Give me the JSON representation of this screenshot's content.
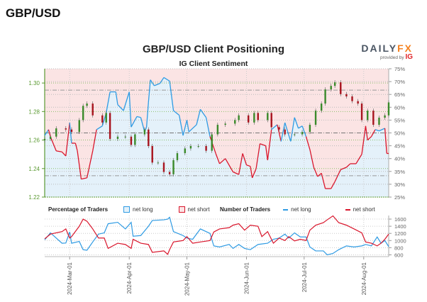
{
  "header": {
    "pair": "GBP/USD"
  },
  "logo": {
    "brand_main": "DAILY",
    "brand_accent": "FX",
    "provided_by": "provided by",
    "ig": "IG"
  },
  "colors": {
    "long": "#2f9be3",
    "short": "#d9162c",
    "up": "#3a8a2a",
    "down": "#a8141e",
    "long_fill": "#e4f1fa",
    "short_fill": "#fbe4e4",
    "price_axis": "#5b9a32"
  },
  "legend": {
    "pct_title": "Percentage of Traders",
    "pct_long": "net long",
    "pct_short": "net short",
    "num_title": "Number of Traders",
    "num_long": "net long",
    "num_short": "net short"
  },
  "chart_data": [
    {
      "type": "line",
      "title": "GBP/USD Client Positioning",
      "subtitle": "IG Client Sentiment",
      "x_range": [
        "2024-02-17",
        "2024-08-14"
      ],
      "x_ticks": [
        "2024-Mar-01",
        "2024-Apr-01",
        "2024-May-01",
        "2024-Jun-01",
        "2024-Jul-01",
        "2024-Aug-01"
      ],
      "x_tick_dates": [
        "2024-03-01",
        "2024-04-01",
        "2024-05-01",
        "2024-06-01",
        "2024-07-01",
        "2024-08-01"
      ],
      "y_left": {
        "range": [
          1.22,
          1.31
        ],
        "ticks": [
          "1.22",
          "1.24",
          "1.26",
          "1.28",
          "1.30"
        ]
      },
      "y_right": {
        "range": [
          25,
          75
        ],
        "ticks": [
          "25%",
          "30%",
          "35%",
          "40%",
          "45%",
          "50%",
          "55%",
          "60%",
          "65%",
          "70%",
          "75%"
        ]
      },
      "grid": true,
      "price_close": [
        [
          "2024-02-17",
          1.2608
        ],
        [
          "2024-02-20",
          1.2624
        ],
        [
          "2024-02-23",
          1.2682
        ],
        [
          "2024-02-28",
          1.2674
        ],
        [
          "2024-03-02",
          1.2657
        ],
        [
          "2024-03-06",
          1.274
        ],
        [
          "2024-03-08",
          1.284
        ],
        [
          "2024-03-10",
          1.2856
        ],
        [
          "2024-03-13",
          1.2773
        ],
        [
          "2024-03-18",
          1.2723
        ],
        [
          "2024-03-20",
          1.279
        ],
        [
          "2024-03-22",
          1.2608
        ],
        [
          "2024-03-26",
          1.2624
        ],
        [
          "2024-03-30",
          1.2624
        ],
        [
          "2024-04-02",
          1.2566
        ],
        [
          "2024-04-04",
          1.264
        ],
        [
          "2024-04-09",
          1.2674
        ],
        [
          "2024-04-11",
          1.2558
        ],
        [
          "2024-04-13",
          1.2442
        ],
        [
          "2024-04-16",
          1.2442
        ],
        [
          "2024-04-19",
          1.2376
        ],
        [
          "2024-04-22",
          1.236
        ],
        [
          "2024-04-24",
          1.2459
        ],
        [
          "2024-04-26",
          1.2508
        ],
        [
          "2024-04-30",
          1.2541
        ],
        [
          "2024-05-03",
          1.2558
        ],
        [
          "2024-05-07",
          1.2558
        ],
        [
          "2024-05-11",
          1.2525
        ],
        [
          "2024-05-14",
          1.264
        ],
        [
          "2024-05-17",
          1.2707
        ],
        [
          "2024-05-21",
          1.2715
        ],
        [
          "2024-05-26",
          1.274
        ],
        [
          "2024-05-28",
          1.2773
        ],
        [
          "2024-06-02",
          1.2723
        ],
        [
          "2024-06-05",
          1.279
        ],
        [
          "2024-06-07",
          1.274
        ],
        [
          "2024-06-12",
          1.279
        ],
        [
          "2024-06-14",
          1.269
        ],
        [
          "2024-06-18",
          1.2674
        ],
        [
          "2024-06-21",
          1.264
        ],
        [
          "2024-06-26",
          1.264
        ],
        [
          "2024-06-30",
          1.2657
        ],
        [
          "2024-07-04",
          1.2707
        ],
        [
          "2024-07-07",
          1.2806
        ],
        [
          "2024-07-10",
          1.2856
        ],
        [
          "2024-07-12",
          1.2955
        ],
        [
          "2024-07-15",
          1.298
        ],
        [
          "2024-07-17",
          1.3005
        ],
        [
          "2024-07-20",
          1.2922
        ],
        [
          "2024-07-23",
          1.2906
        ],
        [
          "2024-07-26",
          1.2873
        ],
        [
          "2024-07-29",
          1.2856
        ],
        [
          "2024-07-31",
          1.274
        ],
        [
          "2024-08-03",
          1.2806
        ],
        [
          "2024-08-06",
          1.2707
        ],
        [
          "2024-08-09",
          1.2757
        ],
        [
          "2024-08-12",
          1.2773
        ],
        [
          "2024-08-14",
          1.2864
        ]
      ],
      "net_long_pct": [
        [
          "2024-02-17",
          49
        ],
        [
          "2024-02-19",
          51.3
        ],
        [
          "2024-02-20",
          48.5
        ],
        [
          "2024-02-23",
          43
        ],
        [
          "2024-02-26",
          42.6
        ],
        [
          "2024-02-28",
          41
        ],
        [
          "2024-03-01",
          54
        ],
        [
          "2024-03-02",
          46
        ],
        [
          "2024-03-04",
          46
        ],
        [
          "2024-03-05",
          43
        ],
        [
          "2024-03-07",
          32
        ],
        [
          "2024-03-10",
          32.5
        ],
        [
          "2024-03-13",
          43
        ],
        [
          "2024-03-15",
          51.3
        ],
        [
          "2024-03-18",
          52.7
        ],
        [
          "2024-03-20",
          57.8
        ],
        [
          "2024-03-22",
          66
        ],
        [
          "2024-03-25",
          66
        ],
        [
          "2024-03-26",
          61
        ],
        [
          "2024-03-29",
          58.7
        ],
        [
          "2024-04-01",
          66
        ],
        [
          "2024-04-02",
          52.3
        ],
        [
          "2024-04-05",
          56.4
        ],
        [
          "2024-04-07",
          56
        ],
        [
          "2024-04-09",
          50.4
        ],
        [
          "2024-04-10",
          52.3
        ],
        [
          "2024-04-11",
          62
        ],
        [
          "2024-04-12",
          70.7
        ],
        [
          "2024-04-14",
          68.4
        ],
        [
          "2024-04-17",
          69.3
        ],
        [
          "2024-04-19",
          71.6
        ],
        [
          "2024-04-22",
          70.2
        ],
        [
          "2024-04-24",
          58.7
        ],
        [
          "2024-04-27",
          56.9
        ],
        [
          "2024-04-29",
          49
        ],
        [
          "2024-05-01",
          55
        ],
        [
          "2024-05-02",
          50.4
        ],
        [
          "2024-05-06",
          53.2
        ],
        [
          "2024-05-08",
          59.2
        ],
        [
          "2024-05-11",
          56
        ],
        [
          "2024-05-13",
          48.6
        ],
        [
          "2024-05-16",
          42
        ],
        [
          "2024-05-18",
          38
        ],
        [
          "2024-05-21",
          40
        ],
        [
          "2024-05-25",
          34.8
        ],
        [
          "2024-05-28",
          33.8
        ],
        [
          "2024-05-30",
          42
        ],
        [
          "2024-06-01",
          37.5
        ],
        [
          "2024-06-03",
          37
        ],
        [
          "2024-06-04",
          32.5
        ],
        [
          "2024-06-06",
          36
        ],
        [
          "2024-06-08",
          45.8
        ],
        [
          "2024-06-11",
          45
        ],
        [
          "2024-06-12",
          39.4
        ],
        [
          "2024-06-14",
          51.3
        ],
        [
          "2024-06-17",
          53.2
        ],
        [
          "2024-06-19",
          46.7
        ],
        [
          "2024-06-21",
          54
        ],
        [
          "2024-06-24",
          46.7
        ],
        [
          "2024-06-26",
          56
        ],
        [
          "2024-06-28",
          51.8
        ],
        [
          "2024-06-30",
          52.7
        ],
        [
          "2024-07-02",
          48.6
        ],
        [
          "2024-07-04",
          43.5
        ],
        [
          "2024-07-06",
          36.6
        ],
        [
          "2024-07-08",
          33
        ],
        [
          "2024-07-10",
          34.3
        ],
        [
          "2024-07-12",
          28.3
        ],
        [
          "2024-07-15",
          28.3
        ],
        [
          "2024-07-17",
          31
        ],
        [
          "2024-07-20",
          35.7
        ],
        [
          "2024-07-23",
          36.6
        ],
        [
          "2024-07-25",
          38
        ],
        [
          "2024-07-28",
          38
        ],
        [
          "2024-07-31",
          41.7
        ],
        [
          "2024-08-02",
          52.7
        ],
        [
          "2024-08-03",
          47.2
        ],
        [
          "2024-08-05",
          48.6
        ],
        [
          "2024-08-07",
          51.3
        ],
        [
          "2024-08-09",
          50.8
        ],
        [
          "2024-08-12",
          51.8
        ],
        [
          "2024-08-13",
          42
        ],
        [
          "2024-08-14",
          42
        ]
      ]
    },
    {
      "type": "line",
      "y_range": [
        550,
        1700
      ],
      "y_ticks": [
        "600",
        "800",
        "1000",
        "1200",
        "1400",
        "1600"
      ],
      "series": [
        {
          "name": "net long",
          "points": [
            [
              "2024-02-17",
              1020
            ],
            [
              "2024-02-20",
              1215
            ],
            [
              "2024-02-26",
              925
            ],
            [
              "2024-02-28",
              930
            ],
            [
              "2024-03-01",
              1240
            ],
            [
              "2024-03-02",
              925
            ],
            [
              "2024-03-06",
              975
            ],
            [
              "2024-03-08",
              745
            ],
            [
              "2024-03-10",
              730
            ],
            [
              "2024-03-13",
              960
            ],
            [
              "2024-03-16",
              1180
            ],
            [
              "2024-03-19",
              1215
            ],
            [
              "2024-03-21",
              1470
            ],
            [
              "2024-03-26",
              1510
            ],
            [
              "2024-03-30",
              1325
            ],
            [
              "2024-04-02",
              1510
            ],
            [
              "2024-04-03",
              1120
            ],
            [
              "2024-04-07",
              1140
            ],
            [
              "2024-04-11",
              1400
            ],
            [
              "2024-04-13",
              1560
            ],
            [
              "2024-04-19",
              1580
            ],
            [
              "2024-04-21",
              1600
            ],
            [
              "2024-04-22",
              1650
            ],
            [
              "2024-04-24",
              1250
            ],
            [
              "2024-04-29",
              1140
            ],
            [
              "2024-05-01",
              1070
            ],
            [
              "2024-05-04",
              1035
            ],
            [
              "2024-05-08",
              1325
            ],
            [
              "2024-05-13",
              1200
            ],
            [
              "2024-05-15",
              850
            ],
            [
              "2024-05-18",
              820
            ],
            [
              "2024-05-23",
              890
            ],
            [
              "2024-05-25",
              780
            ],
            [
              "2024-05-28",
              890
            ],
            [
              "2024-05-31",
              780
            ],
            [
              "2024-06-03",
              745
            ],
            [
              "2024-06-07",
              890
            ],
            [
              "2024-06-09",
              905
            ],
            [
              "2024-06-12",
              925
            ],
            [
              "2024-06-15",
              1035
            ],
            [
              "2024-06-18",
              1070
            ],
            [
              "2024-06-21",
              1180
            ],
            [
              "2024-06-23",
              1070
            ],
            [
              "2024-06-26",
              1215
            ],
            [
              "2024-06-29",
              1100
            ],
            [
              "2024-07-02",
              1100
            ],
            [
              "2024-07-04",
              820
            ],
            [
              "2024-07-07",
              710
            ],
            [
              "2024-07-11",
              710
            ],
            [
              "2024-07-13",
              600
            ],
            [
              "2024-07-16",
              640
            ],
            [
              "2024-07-19",
              745
            ],
            [
              "2024-07-23",
              850
            ],
            [
              "2024-07-27",
              820
            ],
            [
              "2024-07-31",
              850
            ],
            [
              "2024-08-02",
              890
            ],
            [
              "2024-08-05",
              850
            ],
            [
              "2024-08-08",
              1100
            ],
            [
              "2024-08-10",
              925
            ],
            [
              "2024-08-12",
              1000
            ],
            [
              "2024-08-14",
              830
            ]
          ]
        },
        {
          "name": "net short",
          "points": [
            [
              "2024-02-17",
              1050
            ],
            [
              "2024-02-20",
              1180
            ],
            [
              "2024-02-26",
              1250
            ],
            [
              "2024-02-28",
              1325
            ],
            [
              "2024-03-01",
              1070
            ],
            [
              "2024-03-02",
              1110
            ],
            [
              "2024-03-06",
              1400
            ],
            [
              "2024-03-08",
              1600
            ],
            [
              "2024-03-10",
              1540
            ],
            [
              "2024-03-13",
              1325
            ],
            [
              "2024-03-16",
              1070
            ],
            [
              "2024-03-19",
              1070
            ],
            [
              "2024-03-21",
              780
            ],
            [
              "2024-03-26",
              925
            ],
            [
              "2024-03-30",
              890
            ],
            [
              "2024-04-02",
              780
            ],
            [
              "2024-04-03",
              1035
            ],
            [
              "2024-04-07",
              925
            ],
            [
              "2024-04-11",
              890
            ],
            [
              "2024-04-13",
              670
            ],
            [
              "2024-04-19",
              710
            ],
            [
              "2024-04-21",
              615
            ],
            [
              "2024-04-22",
              745
            ],
            [
              "2024-04-24",
              960
            ],
            [
              "2024-04-29",
              1000
            ],
            [
              "2024-05-01",
              1110
            ],
            [
              "2024-05-04",
              925
            ],
            [
              "2024-05-08",
              960
            ],
            [
              "2024-05-13",
              1000
            ],
            [
              "2024-05-15",
              1240
            ],
            [
              "2024-05-18",
              1325
            ],
            [
              "2024-05-23",
              1360
            ],
            [
              "2024-05-25",
              1430
            ],
            [
              "2024-05-28",
              1470
            ],
            [
              "2024-05-31",
              1290
            ],
            [
              "2024-06-03",
              1430
            ],
            [
              "2024-06-07",
              1400
            ],
            [
              "2024-06-09",
              1110
            ],
            [
              "2024-06-12",
              1250
            ],
            [
              "2024-06-15",
              925
            ],
            [
              "2024-06-18",
              1070
            ],
            [
              "2024-06-21",
              1000
            ],
            [
              "2024-06-23",
              1110
            ],
            [
              "2024-06-26",
              990
            ],
            [
              "2024-06-29",
              1035
            ],
            [
              "2024-07-02",
              1000
            ],
            [
              "2024-07-04",
              1290
            ],
            [
              "2024-07-07",
              1430
            ],
            [
              "2024-07-11",
              1500
            ],
            [
              "2024-07-13",
              1580
            ],
            [
              "2024-07-16",
              1690
            ],
            [
              "2024-07-19",
              1500
            ],
            [
              "2024-07-23",
              1430
            ],
            [
              "2024-07-27",
              1325
            ],
            [
              "2024-07-31",
              1215
            ],
            [
              "2024-08-02",
              960
            ],
            [
              "2024-08-05",
              925
            ],
            [
              "2024-08-08",
              850
            ],
            [
              "2024-08-10",
              925
            ],
            [
              "2024-08-12",
              1035
            ],
            [
              "2024-08-14",
              1180
            ]
          ]
        }
      ]
    }
  ]
}
